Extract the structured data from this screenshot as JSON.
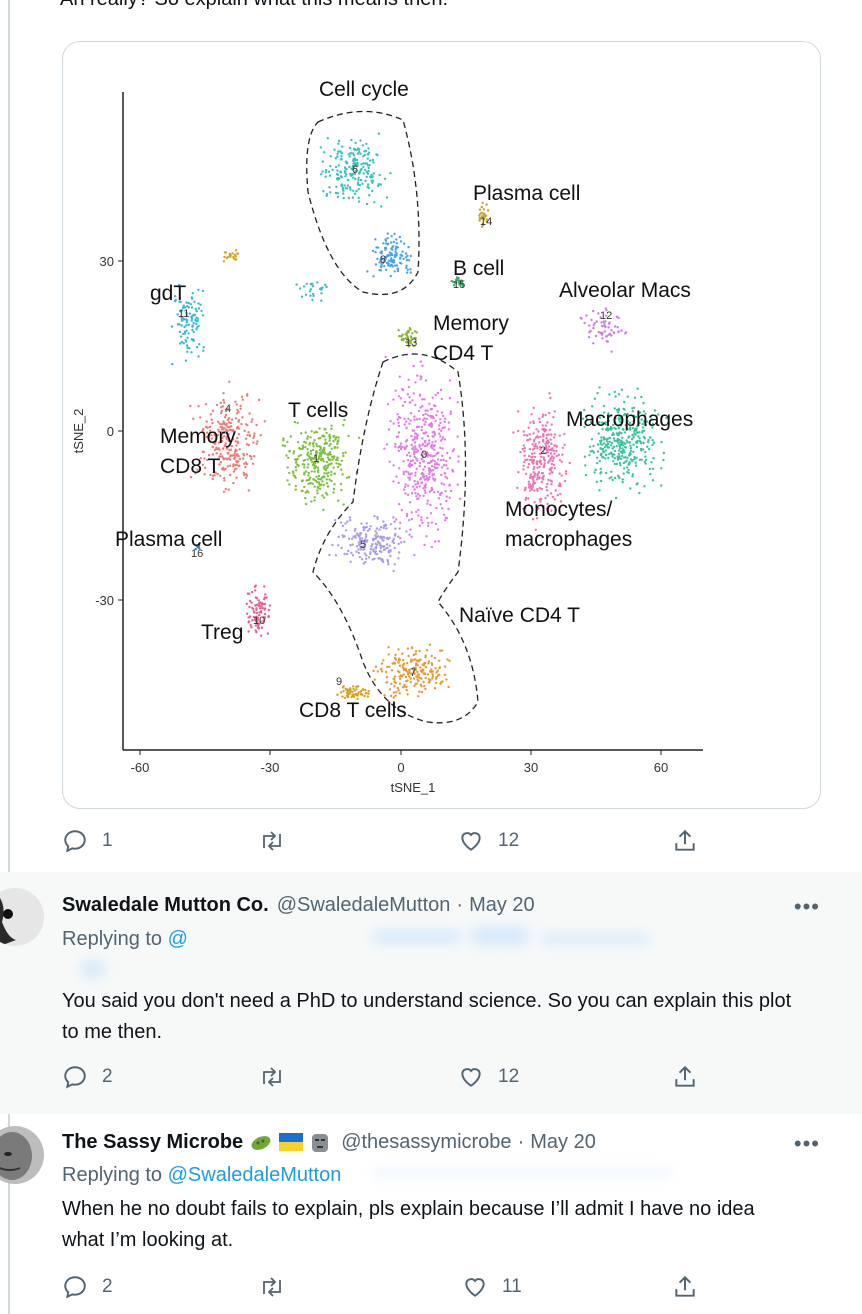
{
  "top_tweet": {
    "text": "Ah really?  So explain what this means then:",
    "actions": {
      "replies": "1",
      "likes": "12"
    }
  },
  "plot": {
    "xlabel": "tSNE_1",
    "ylabel": "tSNE_2",
    "x_ticks": [
      "-60",
      "-30",
      "0",
      "30",
      "60"
    ],
    "y_ticks": [
      "30",
      "0",
      "-30"
    ],
    "labels": {
      "cell_cycle": "Cell cycle",
      "plasma_cell_top": "Plasma cell",
      "b_cell": "B cell",
      "alveolar_macs": "Alveolar Macs",
      "gdt": "gdT",
      "memory_cd4": "Memory",
      "memory_cd4_2": "CD4 T",
      "t_cells": "T cells",
      "macrophages": "Macrophages",
      "memory_cd8": "Memory",
      "memory_cd8_2": "CD8 T",
      "monocytes": "Monocytes/",
      "monocytes_2": "macrophages",
      "plasma_cell_left": "Plasma cell",
      "naive_cd4": "Naïve CD4 T",
      "treg": "Treg",
      "cd8_t_cells": "CD8 T cells"
    },
    "cluster_numbers": {
      "c0": "0",
      "c1": "1",
      "c2": "2",
      "c4": "4",
      "c5": "5",
      "c6": "6",
      "c7": "7",
      "c8": "8",
      "c9": "9",
      "c10": "10",
      "c11": "11",
      "c12": "12",
      "c13": "13",
      "c14": "14",
      "c15": "15",
      "c16": "16"
    }
  },
  "reply1": {
    "name": "Swaledale Mutton Co.",
    "handle": "@SwaledaleMutton",
    "date": "May 20",
    "replying_label": "Replying to",
    "replying_to": "@",
    "text": " You said you don't need a PhD to understand science.  So you can explain this plot to me then.",
    "actions": {
      "replies": "2",
      "likes": "12"
    },
    "more": "•••"
  },
  "reply2": {
    "name": "The Sassy Microbe",
    "handle": "@thesassymicrobe",
    "date": "May 20",
    "replying_label": "Replying to",
    "replying_to": "@SwaledaleMutton",
    "text": "When he no doubt fails to explain, pls explain because I’ll admit I have no idea what I’m looking at.",
    "actions": {
      "replies": "2",
      "likes": "11"
    },
    "more": "•••"
  },
  "icons": [
    "reply-icon",
    "retweet-icon",
    "like-icon",
    "share-icon",
    "more-icon",
    "microbe-emoji-icon",
    "ukraine-flag-icon",
    "moai-icon"
  ],
  "colors": {
    "text": "#0f1419",
    "muted": "#536471",
    "link": "#1d9bf0",
    "divider": "#cfd9de",
    "hover_bg": "#f7f9f9"
  }
}
